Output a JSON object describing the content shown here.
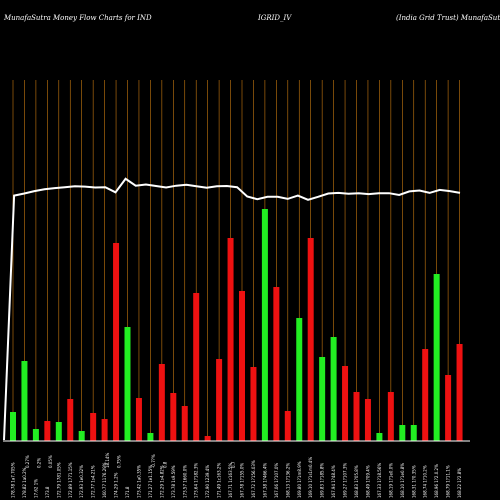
{
  "header": {
    "left": "MunafaSutra  Money Flow  Charts for IND",
    "center": "IGRID_IV",
    "right": "(India  Grid Trust) MunafaSutra.com"
  },
  "colors": {
    "background": "#000000",
    "up": "#22ee22",
    "down": "#ee1111",
    "grid": "#c87a10",
    "line": "#ffffff",
    "axis": "#ffffff"
  },
  "chart_data": {
    "type": "bar",
    "title": "MunafaSutra  Money Flow  Charts for IND IGRID_IV (India  Grid Trust) MunafaSutra.com",
    "line_series": [
      0.0,
      0.978,
      0.985,
      0.993,
      0.999,
      1.003,
      1.006,
      1.009,
      1.008,
      1.005,
      1.006,
      0.989,
      1.034,
      1.011,
      1.015,
      1.01,
      1.005,
      1.011,
      1.014,
      1.009,
      1.004,
      1.009,
      1.01,
      1.006,
      0.975,
      0.966,
      0.974,
      0.974,
      0.967,
      0.978,
      0.964,
      0.974,
      0.985,
      0.987,
      0.984,
      0.986,
      0.983,
      0.986,
      0.986,
      0.98,
      0.992,
      0.995,
      0.987,
      0.997,
      0.993,
      0.987
    ],
    "bars": [
      {
        "color": "green",
        "value": 29
      },
      {
        "color": "green",
        "value": 80
      },
      {
        "color": "green",
        "value": 12
      },
      {
        "color": "red",
        "value": 20
      },
      {
        "color": "green",
        "value": 19
      },
      {
        "color": "red",
        "value": 42
      },
      {
        "color": "green",
        "value": 10
      },
      {
        "color": "red",
        "value": 28
      },
      {
        "color": "red",
        "value": 22
      },
      {
        "color": "red",
        "value": 198
      },
      {
        "color": "green",
        "value": 114
      },
      {
        "color": "red",
        "value": 43
      },
      {
        "color": "green",
        "value": 8
      },
      {
        "color": "red",
        "value": 77
      },
      {
        "color": "red",
        "value": 48
      },
      {
        "color": "red",
        "value": 35
      },
      {
        "color": "red",
        "value": 148
      },
      {
        "color": "red",
        "value": 5
      },
      {
        "color": "red",
        "value": 82
      },
      {
        "color": "red",
        "value": 203
      },
      {
        "color": "red",
        "value": 150
      },
      {
        "color": "red",
        "value": 74
      },
      {
        "color": "green",
        "value": 232
      },
      {
        "color": "red",
        "value": 154
      },
      {
        "color": "red",
        "value": 30
      },
      {
        "color": "green",
        "value": 123
      },
      {
        "color": "red",
        "value": 203
      },
      {
        "color": "green",
        "value": 84
      },
      {
        "color": "green",
        "value": 104
      },
      {
        "color": "red",
        "value": 75
      },
      {
        "color": "red",
        "value": 49
      },
      {
        "color": "red",
        "value": 42
      },
      {
        "color": "green",
        "value": 8
      },
      {
        "color": "red",
        "value": 49
      },
      {
        "color": "green",
        "value": 16
      },
      {
        "color": "green",
        "value": 16
      },
      {
        "color": "red",
        "value": 92
      },
      {
        "color": "green",
        "value": 167
      },
      {
        "color": "red",
        "value": 66
      },
      {
        "color": "red",
        "value": 97
      }
    ],
    "tick_labels": [
      "178.78 1a7.705%",
      "178.82 1a0.2%",
      "17.62 1%",
      "173.8",
      "172.79 1781.05%",
      "172.89 1771.15%",
      "172.93 1e0.32%",
      "172.77 1s4.21%",
      "160.77 1176.29%",
      "174.29 1.2%",
      "171.8",
      "173.42 1a0.35%",
      "171.27 1e1.15%",
      "172.29 1s4.82%",
      "173.78 1s9.59%",
      "173.57 1660.0%",
      "173.64 1?182.3%",
      "172.90 1239.4%",
      "171.49 1c163.2%",
      "167.71 1c163.5%",
      "167.78 1?155.0%",
      "167.72 1?156.03%",
      "167.38 1?466.4%",
      "167.06 1?107.0%",
      "168.13 1?136.2%",
      "169.80 1?1m8.9%",
      "169.10 1?1s1m0.4%",
      "169.83 1?185.8%",
      "167.94 1?48.4%",
      "169.27 1?107.3%",
      "168.83 1?05.8%",
      "168.49 1?09.4%",
      "167.33 1?18.56%",
      "168.19 1?1e0.0%",
      "168.10 1?1e0.8%",
      "168.31 1?0.35%",
      "168.74 1?10.2%",
      "168.96 1?2.0.2%",
      "168.79 1?11.1%",
      "168.22 1?2.8%"
    ],
    "tick_labels_extra": [
      "0.27%",
      "0.2%",
      "0.05%",
      "18.14%",
      "0.75%",
      "-0.7?%",
      "0.8",
      "0.7"
    ]
  }
}
